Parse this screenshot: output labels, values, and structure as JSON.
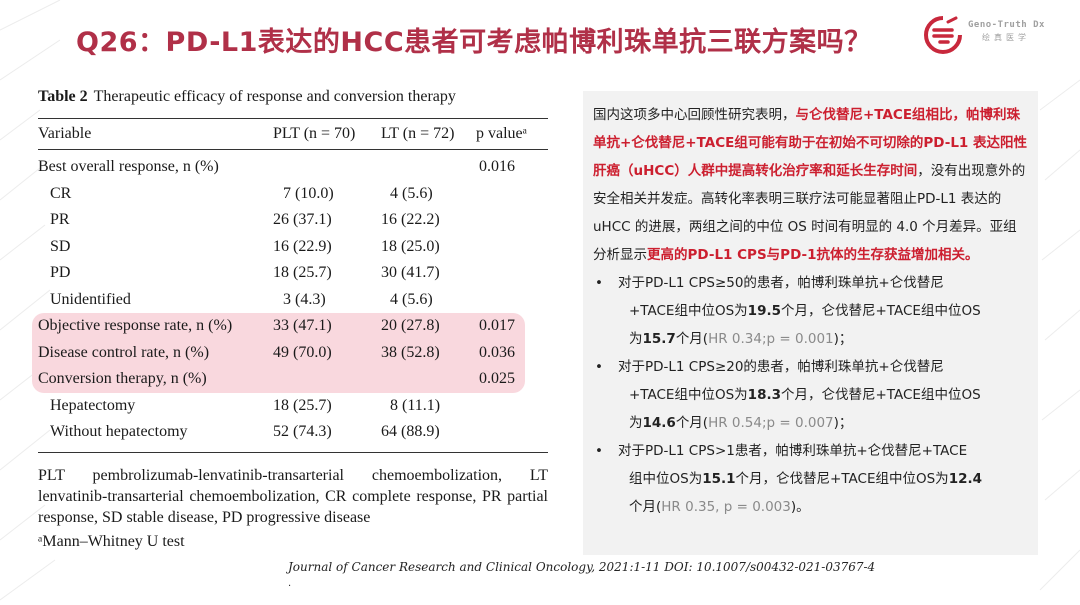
{
  "header": {
    "title": "Q26：PD-L1表达的HCC患者可考虑帕博利珠单抗三联方案吗？",
    "logo": {
      "en": "Geno-Truth Dx",
      "cn": "绘真医学"
    }
  },
  "table": {
    "caption_bold": "Table 2",
    "caption_text": "Therapeutic efficacy of response and conversion therapy",
    "columns": [
      "Variable",
      "PLT (n = 70)",
      "LT (n = 72)",
      "p valueᵃ"
    ],
    "rows": [
      {
        "label": "Best overall response, n (%)",
        "plt": "",
        "lt": "",
        "p": "0.016"
      },
      {
        "label": "CR",
        "plt": "7 (10.0)",
        "lt": "4 (5.6)",
        "p": ""
      },
      {
        "label": "PR",
        "plt": "26 (37.1)",
        "lt": "16 (22.2)",
        "p": ""
      },
      {
        "label": "SD",
        "plt": "16 (22.9)",
        "lt": "18 (25.0)",
        "p": ""
      },
      {
        "label": "PD",
        "plt": "18 (25.7)",
        "lt": "30 (41.7)",
        "p": ""
      },
      {
        "label": "Unidentified",
        "plt": "3 (4.3)",
        "lt": "4 (5.6)",
        "p": ""
      },
      {
        "label": "Objective response rate, n (%)",
        "plt": "33 (47.1)",
        "lt": "20 (27.8)",
        "p": "0.017"
      },
      {
        "label": "Disease control rate, n (%)",
        "plt": "49 (70.0)",
        "lt": "38 (52.8)",
        "p": "0.036"
      },
      {
        "label": "Conversion therapy, n (%)",
        "plt": "",
        "lt": "",
        "p": "0.025"
      },
      {
        "label": "Hepatectomy",
        "plt": "18 (25.7)",
        "lt": "8 (11.1)",
        "p": ""
      },
      {
        "label": "Without hepatectomy",
        "plt": "52 (74.3)",
        "lt": "64 (88.9)",
        "p": ""
      }
    ],
    "footnote": "PLT pembrolizumab-lenvatinib-transarterial chemoembolization, LT lenvatinib-transarterial chemoembolization, CR complete response, PR partial response, SD stable disease, PD progressive disease",
    "footnote2": "ᵃMann–Whitney U test",
    "highlight_color": "#f9d8de"
  },
  "citation": "Journal of Cancer Research and Clinical Oncology, 2021:1-11   DOI:   10.1007/s00432-021-03767-4",
  "citation_dot": ".",
  "panel": {
    "intro_1": "国内这项多中心回顾性研究表明，",
    "intro_red": "与仑伐替尼+TACE组相比，帕博利珠单抗+仑伐替尼+TACE组可能有助于在初始不可切除的PD-L1 表达阳性肝癌（uHCC）人群中提高转化治疗率和延长生存时间",
    "intro_2": "，没有出现意外的安全相关并发症。高转化率表明三联疗法可能显著阻止PD-L1 表达的 uHCC 的进展，两组之间的中位 OS 时间有明显的 4.0 个月差异。亚组分析显示",
    "intro_red2": "更高的PD-L1 CPS与PD-1抗体的生存获益增加相关。",
    "bullets": [
      {
        "line1": "对于PD-L1 CPS≥50的患者，帕博利珠单抗+仑伐替尼",
        "line2a": "+TACE组中位OS为",
        "v1": "19.5",
        "line2b": "个月，仑伐替尼+TACE组中位OS",
        "line3a": "为",
        "v2": "15.7",
        "line3b": "个月(",
        "stat": "HR 0.34;p = 0.001",
        "line3c": ")；"
      },
      {
        "line1": "对于PD-L1 CPS≥20的患者，帕博利珠单抗+仑伐替尼",
        "line2a": "+TACE组中位OS为",
        "v1": "18.3",
        "line2b": "个月，仑伐替尼+TACE组中位OS",
        "line3a": "为",
        "v2": "14.6",
        "line3b": "个月(",
        "stat": "HR 0.54;p = 0.007",
        "line3c": ")；"
      },
      {
        "line1": "对于PD-L1 CPS>1患者，帕博利珠单抗+仑伐替尼+TACE",
        "line2a": "组中位OS为",
        "v1": "15.1",
        "line2b": "个月，仑伐替尼+TACE组中位OS为",
        "v2": "12.4",
        "line3a": "个月(",
        "stat": "HR 0.35, p = 0.003",
        "line3c": ")。"
      }
    ],
    "bullet_char": "•",
    "accent_red": "#cc1f2f",
    "panel_bg": "#f2f2f2"
  }
}
